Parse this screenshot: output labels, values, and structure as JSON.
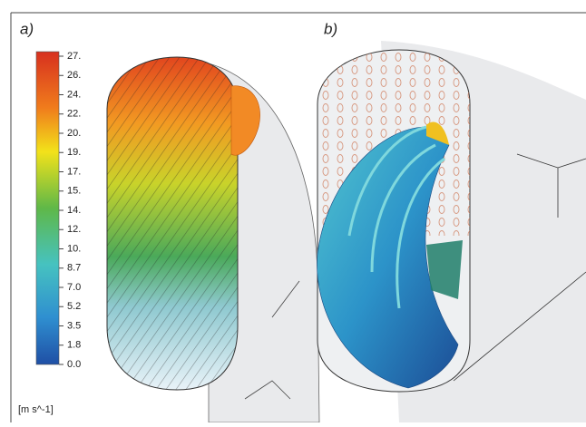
{
  "panels": {
    "a": {
      "label": "a)"
    },
    "b": {
      "label": "b)"
    }
  },
  "colorbar": {
    "ticks": [
      "27.",
      "26.",
      "24.",
      "22.",
      "20.",
      "19.",
      "17.",
      "15.",
      "14.",
      "12.",
      "10.",
      "8.7",
      "7.0",
      "5.2",
      "3.5",
      "1.8",
      "0.0"
    ],
    "unit": "[m s^-1]"
  }
}
